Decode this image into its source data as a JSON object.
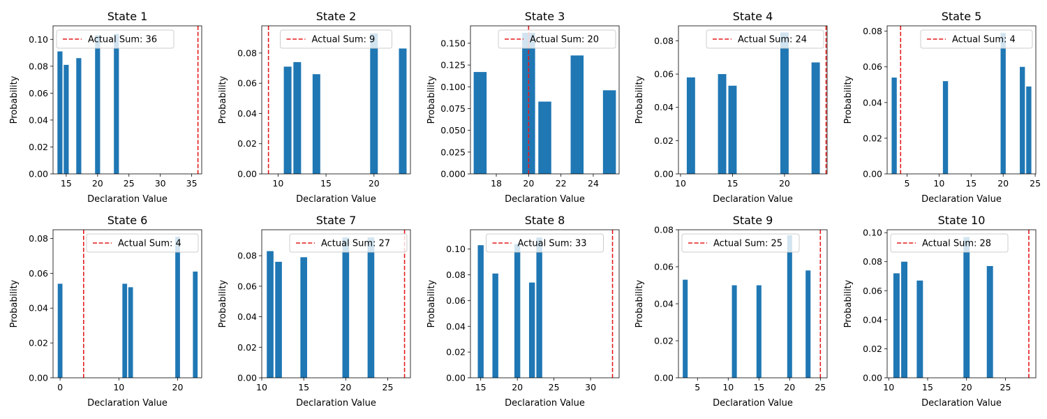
{
  "figure": {
    "bar_color": "#1f77b4",
    "line_color": "#e41a1c",
    "line_style": "dashed",
    "xlabel": "Declaration Value",
    "ylabel": "Probability"
  },
  "chart_data": [
    {
      "type": "bar",
      "title": "State 1",
      "xlabel": "Declaration Value",
      "ylabel": "Probability",
      "x": [
        14,
        15,
        17,
        20,
        23
      ],
      "values": [
        0.091,
        0.081,
        0.086,
        0.103,
        0.104
      ],
      "xlim": [
        12.9,
        36.6
      ],
      "ylim": [
        0,
        0.11
      ],
      "xticks": [
        15,
        20,
        25,
        30,
        35
      ],
      "xtick_labels": [
        "15",
        "20",
        "25",
        "30",
        "35"
      ],
      "yticks": [
        0,
        0.02,
        0.04,
        0.06,
        0.08,
        0.1
      ],
      "ytick_labels": [
        "0.00",
        "0.02",
        "0.04",
        "0.06",
        "0.08",
        "0.10"
      ],
      "vline": {
        "x": 36,
        "label": "Actual Sum: 36"
      },
      "legend": "upper left"
    },
    {
      "type": "bar",
      "title": "State 2",
      "xlabel": "Declaration Value",
      "ylabel": "Probability",
      "x": [
        11,
        12,
        14,
        20,
        23
      ],
      "values": [
        0.071,
        0.074,
        0.066,
        0.093,
        0.083
      ],
      "xlim": [
        8.3,
        23.8
      ],
      "ylim": [
        0,
        0.098
      ],
      "xticks": [
        10,
        15,
        20
      ],
      "xtick_labels": [
        "10",
        "15",
        "20"
      ],
      "yticks": [
        0,
        0.02,
        0.04,
        0.06,
        0.08
      ],
      "ytick_labels": [
        "0.00",
        "0.02",
        "0.04",
        "0.06",
        "0.08"
      ],
      "vline": {
        "x": 9,
        "label": "Actual Sum: 9"
      },
      "legend": "upper center"
    },
    {
      "type": "bar",
      "title": "State 3",
      "xlabel": "Declaration Value",
      "ylabel": "Probability",
      "x": [
        17,
        20,
        21,
        23,
        25
      ],
      "values": [
        0.117,
        0.162,
        0.083,
        0.136,
        0.096
      ],
      "xlim": [
        16.4,
        25.6
      ],
      "ylim": [
        0,
        0.17
      ],
      "xticks": [
        18,
        20,
        22,
        24
      ],
      "xtick_labels": [
        "18",
        "20",
        "22",
        "24"
      ],
      "yticks": [
        0,
        0.025,
        0.05,
        0.075,
        0.1,
        0.125,
        0.15
      ],
      "ytick_labels": [
        "0.000",
        "0.025",
        "0.050",
        "0.075",
        "0.100",
        "0.125",
        "0.150"
      ],
      "vline": {
        "x": 20,
        "label": "Actual Sum: 20"
      },
      "legend": "upper right"
    },
    {
      "type": "bar",
      "title": "State 4",
      "xlabel": "Declaration Value",
      "ylabel": "Probability",
      "x": [
        11,
        14,
        15,
        20,
        23
      ],
      "values": [
        0.058,
        0.06,
        0.053,
        0.085,
        0.067
      ],
      "xlim": [
        9.8,
        24.1
      ],
      "ylim": [
        0,
        0.089
      ],
      "xticks": [
        10,
        15,
        20
      ],
      "xtick_labels": [
        "10",
        "15",
        "20"
      ],
      "yticks": [
        0,
        0.02,
        0.04,
        0.06,
        0.08
      ],
      "ytick_labels": [
        "0.00",
        "0.02",
        "0.04",
        "0.06",
        "0.08"
      ],
      "vline": {
        "x": 24,
        "label": "Actual Sum: 24"
      },
      "legend": "upper right"
    },
    {
      "type": "bar",
      "title": "State 5",
      "xlabel": "Declaration Value",
      "ylabel": "Probability",
      "x": [
        3,
        11,
        20,
        23,
        24
      ],
      "values": [
        0.054,
        0.052,
        0.079,
        0.06,
        0.049
      ],
      "xlim": [
        1.9,
        25.1
      ],
      "ylim": [
        0,
        0.083
      ],
      "xticks": [
        5,
        10,
        15,
        20,
        25
      ],
      "xtick_labels": [
        "5",
        "10",
        "15",
        "20",
        "25"
      ],
      "yticks": [
        0,
        0.02,
        0.04,
        0.06,
        0.08
      ],
      "ytick_labels": [
        "0.00",
        "0.02",
        "0.04",
        "0.06",
        "0.08"
      ],
      "vline": {
        "x": 4,
        "label": "Actual Sum: 4"
      },
      "legend": "upper right"
    },
    {
      "type": "bar",
      "title": "State 6",
      "xlabel": "Declaration Value",
      "ylabel": "Probability",
      "x": [
        0,
        11,
        12,
        20,
        23
      ],
      "values": [
        0.054,
        0.054,
        0.052,
        0.081,
        0.061
      ],
      "xlim": [
        -1.2,
        24.1
      ],
      "ylim": [
        0,
        0.085
      ],
      "xticks": [
        0,
        10,
        20
      ],
      "xtick_labels": [
        "0",
        "10",
        "20"
      ],
      "yticks": [
        0,
        0.02,
        0.04,
        0.06,
        0.08
      ],
      "ytick_labels": [
        "0.00",
        "0.02",
        "0.04",
        "0.06",
        "0.08"
      ],
      "vline": {
        "x": 4,
        "label": "Actual Sum: 4"
      },
      "legend": "upper right"
    },
    {
      "type": "bar",
      "title": "State 7",
      "xlabel": "Declaration Value",
      "ylabel": "Probability",
      "x": [
        11,
        12,
        15,
        20,
        23
      ],
      "values": [
        0.083,
        0.076,
        0.079,
        0.092,
        0.092
      ],
      "xlim": [
        10.0,
        27.7
      ],
      "ylim": [
        0,
        0.097
      ],
      "xticks": [
        10,
        15,
        20,
        25
      ],
      "xtick_labels": [
        "10",
        "15",
        "20",
        "25"
      ],
      "yticks": [
        0,
        0.02,
        0.04,
        0.06,
        0.08
      ],
      "ytick_labels": [
        "0.00",
        "0.02",
        "0.04",
        "0.06",
        "0.08"
      ],
      "vline": {
        "x": 27,
        "label": "Actual Sum: 27"
      },
      "legend": "upper right"
    },
    {
      "type": "bar",
      "title": "State 8",
      "xlabel": "Declaration Value",
      "ylabel": "Probability",
      "x": [
        15,
        17,
        20,
        22,
        23
      ],
      "values": [
        0.103,
        0.081,
        0.104,
        0.074,
        0.109
      ],
      "xlim": [
        13.6,
        33.9
      ],
      "ylim": [
        0,
        0.115
      ],
      "xticks": [
        15,
        20,
        25,
        30
      ],
      "xtick_labels": [
        "15",
        "20",
        "25",
        "30"
      ],
      "yticks": [
        0,
        0.02,
        0.04,
        0.06,
        0.08,
        0.1
      ],
      "ytick_labels": [
        "0.00",
        "0.02",
        "0.04",
        "0.06",
        "0.08",
        "0.10"
      ],
      "vline": {
        "x": 33,
        "label": "Actual Sum: 33"
      },
      "legend": "upper center"
    },
    {
      "type": "bar",
      "title": "State 9",
      "xlabel": "Declaration Value",
      "ylabel": "Probability",
      "x": [
        3,
        11,
        15,
        20,
        23
      ],
      "values": [
        0.053,
        0.05,
        0.05,
        0.077,
        0.058
      ],
      "xlim": [
        1.9,
        26.1
      ],
      "ylim": [
        0,
        0.08
      ],
      "xticks": [
        5,
        10,
        15,
        20,
        25
      ],
      "xtick_labels": [
        "5",
        "10",
        "15",
        "20",
        "25"
      ],
      "yticks": [
        0,
        0.02,
        0.04,
        0.06,
        0.08
      ],
      "ytick_labels": [
        "0.00",
        "0.02",
        "0.04",
        "0.06",
        "0.08"
      ],
      "vline": {
        "x": 25,
        "label": "Actual Sum: 25"
      },
      "legend": "upper left"
    },
    {
      "type": "bar",
      "title": "State 10",
      "xlabel": "Declaration Value",
      "ylabel": "Probability",
      "x": [
        11,
        12,
        14,
        20,
        23
      ],
      "values": [
        0.072,
        0.08,
        0.067,
        0.097,
        0.077
      ],
      "xlim": [
        9.8,
        28.9
      ],
      "ylim": [
        0,
        0.102
      ],
      "xticks": [
        10,
        15,
        20,
        25
      ],
      "xtick_labels": [
        "10",
        "15",
        "20",
        "25"
      ],
      "yticks": [
        0,
        0.02,
        0.04,
        0.06,
        0.08,
        0.1
      ],
      "ytick_labels": [
        "0.00",
        "0.02",
        "0.04",
        "0.06",
        "0.08",
        "0.10"
      ],
      "vline": {
        "x": 28,
        "label": "Actual Sum: 28"
      },
      "legend": "upper left"
    }
  ]
}
